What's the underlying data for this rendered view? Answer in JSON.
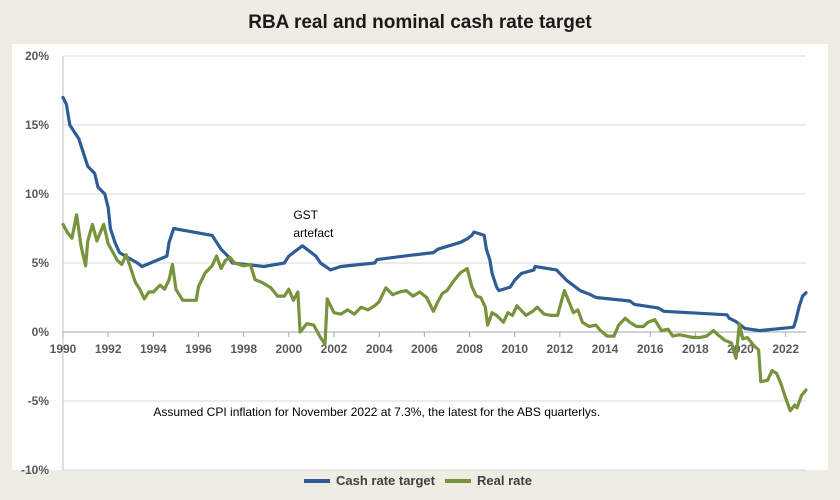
{
  "chart_data": {
    "type": "line",
    "title": "RBA real and nominal cash rate target",
    "xlabel": "",
    "ylabel": "",
    "xlim": [
      1990,
      2022.9
    ],
    "ylim": [
      -10,
      20
    ],
    "grid": true,
    "legend": "bottom",
    "x_ticks": [
      "1990",
      "1992",
      "1994",
      "1996",
      "1998",
      "2000",
      "2002",
      "2004",
      "2006",
      "2008",
      "2010",
      "2012",
      "2014",
      "2016",
      "2018",
      "2020",
      "2022"
    ],
    "y_ticks": [
      {
        "value": 20,
        "label": "20%"
      },
      {
        "value": 15,
        "label": "15%"
      },
      {
        "value": 10,
        "label": "10%"
      },
      {
        "value": 5,
        "label": "5%"
      },
      {
        "value": 0,
        "label": "0%"
      },
      {
        "value": -5,
        "label": "-5%"
      },
      {
        "value": -10,
        "label": "-10%"
      }
    ],
    "annotations": [
      {
        "text": "GST",
        "x": 2000.2,
        "y": 8.2
      },
      {
        "text": "artefact",
        "x": 2000.2,
        "y": 6.9
      },
      {
        "text": "Assumed CPI inflation for November 2022 at 7.3%, the latest for the ABS quarterlys.",
        "x": 1994.0,
        "y": -6.1
      }
    ],
    "series": [
      {
        "name": "Cash rate target",
        "color": "#2e5d95",
        "points": [
          [
            1990.0,
            17.0
          ],
          [
            1990.15,
            16.5
          ],
          [
            1990.3,
            15.0
          ],
          [
            1990.7,
            14.0
          ],
          [
            1990.9,
            13.0
          ],
          [
            1991.1,
            12.0
          ],
          [
            1991.4,
            11.5
          ],
          [
            1991.55,
            10.5
          ],
          [
            1991.85,
            10.0
          ],
          [
            1992.0,
            9.0
          ],
          [
            1992.1,
            7.5
          ],
          [
            1992.3,
            6.5
          ],
          [
            1992.5,
            5.75
          ],
          [
            1993.3,
            5.0
          ],
          [
            1993.5,
            4.75
          ],
          [
            1994.6,
            5.5
          ],
          [
            1994.7,
            6.5
          ],
          [
            1994.9,
            7.5
          ],
          [
            1996.6,
            7.0
          ],
          [
            1997.0,
            6.0
          ],
          [
            1997.3,
            5.5
          ],
          [
            1997.5,
            5.0
          ],
          [
            1998.9,
            4.75
          ],
          [
            1999.8,
            5.0
          ],
          [
            2000.0,
            5.5
          ],
          [
            2000.2,
            5.75
          ],
          [
            2000.4,
            6.0
          ],
          [
            2000.6,
            6.25
          ],
          [
            2001.2,
            5.5
          ],
          [
            2001.4,
            5.0
          ],
          [
            2001.85,
            4.5
          ],
          [
            2002.3,
            4.75
          ],
          [
            2003.8,
            5.0
          ],
          [
            2003.9,
            5.25
          ],
          [
            2005.1,
            5.5
          ],
          [
            2006.4,
            5.75
          ],
          [
            2006.6,
            6.0
          ],
          [
            2007.6,
            6.5
          ],
          [
            2007.9,
            6.75
          ],
          [
            2008.1,
            7.0
          ],
          [
            2008.2,
            7.25
          ],
          [
            2008.65,
            7.0
          ],
          [
            2008.75,
            6.0
          ],
          [
            2008.9,
            5.25
          ],
          [
            2009.0,
            4.25
          ],
          [
            2009.2,
            3.25
          ],
          [
            2009.3,
            3.0
          ],
          [
            2009.8,
            3.25
          ],
          [
            2010.0,
            3.75
          ],
          [
            2010.3,
            4.25
          ],
          [
            2010.85,
            4.5
          ],
          [
            2010.9,
            4.75
          ],
          [
            2011.85,
            4.5
          ],
          [
            2012.0,
            4.25
          ],
          [
            2012.3,
            3.75
          ],
          [
            2012.5,
            3.5
          ],
          [
            2012.9,
            3.0
          ],
          [
            2013.3,
            2.75
          ],
          [
            2013.6,
            2.5
          ],
          [
            2015.1,
            2.25
          ],
          [
            2015.3,
            2.0
          ],
          [
            2016.35,
            1.75
          ],
          [
            2016.6,
            1.5
          ],
          [
            2019.4,
            1.25
          ],
          [
            2019.5,
            1.0
          ],
          [
            2019.8,
            0.75
          ],
          [
            2020.2,
            0.25
          ],
          [
            2020.85,
            0.1
          ],
          [
            2022.35,
            0.35
          ],
          [
            2022.45,
            0.85
          ],
          [
            2022.6,
            1.85
          ],
          [
            2022.75,
            2.6
          ],
          [
            2022.9,
            2.85
          ]
        ]
      },
      {
        "name": "Real rate",
        "color": "#77933c",
        "points": [
          [
            1990.0,
            7.8
          ],
          [
            1990.2,
            7.2
          ],
          [
            1990.4,
            6.8
          ],
          [
            1990.6,
            8.5
          ],
          [
            1990.8,
            6.2
          ],
          [
            1991.0,
            4.8
          ],
          [
            1991.1,
            6.6
          ],
          [
            1991.3,
            7.8
          ],
          [
            1991.5,
            6.6
          ],
          [
            1991.8,
            7.8
          ],
          [
            1992.0,
            6.4
          ],
          [
            1992.2,
            5.8
          ],
          [
            1992.4,
            5.2
          ],
          [
            1992.6,
            4.9
          ],
          [
            1992.8,
            5.6
          ],
          [
            1993.0,
            4.6
          ],
          [
            1993.2,
            3.6
          ],
          [
            1993.4,
            3.1
          ],
          [
            1993.6,
            2.4
          ],
          [
            1993.8,
            2.9
          ],
          [
            1994.0,
            2.9
          ],
          [
            1994.3,
            3.4
          ],
          [
            1994.5,
            3.1
          ],
          [
            1994.7,
            3.8
          ],
          [
            1994.85,
            4.9
          ],
          [
            1995.0,
            3.1
          ],
          [
            1995.3,
            2.3
          ],
          [
            1995.9,
            2.3
          ],
          [
            1996.0,
            3.3
          ],
          [
            1996.3,
            4.3
          ],
          [
            1996.6,
            4.8
          ],
          [
            1996.8,
            5.5
          ],
          [
            1997.0,
            4.6
          ],
          [
            1997.2,
            5.2
          ],
          [
            1997.4,
            5.4
          ],
          [
            1997.6,
            5.0
          ],
          [
            1998.0,
            4.8
          ],
          [
            1998.3,
            4.9
          ],
          [
            1998.5,
            3.8
          ],
          [
            1998.8,
            3.6
          ],
          [
            1999.2,
            3.2
          ],
          [
            1999.5,
            2.6
          ],
          [
            1999.8,
            2.6
          ],
          [
            2000.0,
            3.1
          ],
          [
            2000.2,
            2.3
          ],
          [
            2000.4,
            2.9
          ],
          [
            2000.5,
            0.0
          ],
          [
            2000.8,
            0.6
          ],
          [
            2001.1,
            0.5
          ],
          [
            2001.4,
            -0.4
          ],
          [
            2001.6,
            -0.9
          ],
          [
            2001.7,
            2.4
          ],
          [
            2002.0,
            1.4
          ],
          [
            2002.3,
            1.3
          ],
          [
            2002.6,
            1.6
          ],
          [
            2002.9,
            1.3
          ],
          [
            2003.2,
            1.8
          ],
          [
            2003.5,
            1.6
          ],
          [
            2003.8,
            1.9
          ],
          [
            2004.0,
            2.2
          ],
          [
            2004.3,
            3.2
          ],
          [
            2004.6,
            2.7
          ],
          [
            2004.9,
            2.9
          ],
          [
            2005.2,
            3.0
          ],
          [
            2005.5,
            2.6
          ],
          [
            2005.8,
            2.9
          ],
          [
            2006.1,
            2.5
          ],
          [
            2006.4,
            1.5
          ],
          [
            2006.6,
            2.2
          ],
          [
            2006.8,
            2.8
          ],
          [
            2007.0,
            3.0
          ],
          [
            2007.3,
            3.7
          ],
          [
            2007.6,
            4.3
          ],
          [
            2007.9,
            4.6
          ],
          [
            2008.1,
            3.3
          ],
          [
            2008.3,
            2.6
          ],
          [
            2008.5,
            2.5
          ],
          [
            2008.7,
            1.8
          ],
          [
            2008.8,
            0.5
          ],
          [
            2009.0,
            1.4
          ],
          [
            2009.2,
            1.2
          ],
          [
            2009.5,
            0.7
          ],
          [
            2009.7,
            1.4
          ],
          [
            2009.9,
            1.2
          ],
          [
            2010.1,
            1.9
          ],
          [
            2010.5,
            1.2
          ],
          [
            2010.8,
            1.5
          ],
          [
            2011.0,
            1.8
          ],
          [
            2011.3,
            1.3
          ],
          [
            2011.6,
            1.2
          ],
          [
            2011.9,
            1.2
          ],
          [
            2012.0,
            1.8
          ],
          [
            2012.2,
            3.0
          ],
          [
            2012.4,
            2.2
          ],
          [
            2012.6,
            1.4
          ],
          [
            2012.8,
            1.6
          ],
          [
            2013.0,
            0.7
          ],
          [
            2013.3,
            0.4
          ],
          [
            2013.6,
            0.5
          ],
          [
            2013.8,
            0.1
          ],
          [
            2014.1,
            -0.3
          ],
          [
            2014.4,
            -0.3
          ],
          [
            2014.6,
            0.5
          ],
          [
            2014.9,
            1.0
          ],
          [
            2015.1,
            0.7
          ],
          [
            2015.4,
            0.4
          ],
          [
            2015.7,
            0.4
          ],
          [
            2015.9,
            0.7
          ],
          [
            2016.2,
            0.9
          ],
          [
            2016.5,
            0.1
          ],
          [
            2016.8,
            0.2
          ],
          [
            2017.0,
            -0.3
          ],
          [
            2017.3,
            -0.2
          ],
          [
            2017.6,
            -0.3
          ],
          [
            2017.9,
            -0.4
          ],
          [
            2018.2,
            -0.4
          ],
          [
            2018.5,
            -0.3
          ],
          [
            2018.8,
            0.1
          ],
          [
            2019.0,
            -0.2
          ],
          [
            2019.3,
            -0.6
          ],
          [
            2019.6,
            -0.8
          ],
          [
            2019.8,
            -1.9
          ],
          [
            2019.95,
            0.6
          ],
          [
            2020.1,
            -0.5
          ],
          [
            2020.3,
            -0.4
          ],
          [
            2020.6,
            -1.0
          ],
          [
            2020.8,
            -1.3
          ],
          [
            2020.9,
            -3.6
          ],
          [
            2021.2,
            -3.5
          ],
          [
            2021.4,
            -2.8
          ],
          [
            2021.6,
            -3.0
          ],
          [
            2021.8,
            -3.8
          ],
          [
            2022.0,
            -4.8
          ],
          [
            2022.2,
            -5.7
          ],
          [
            2022.4,
            -5.3
          ],
          [
            2022.5,
            -5.5
          ],
          [
            2022.7,
            -4.6
          ],
          [
            2022.9,
            -4.2
          ]
        ]
      }
    ]
  }
}
